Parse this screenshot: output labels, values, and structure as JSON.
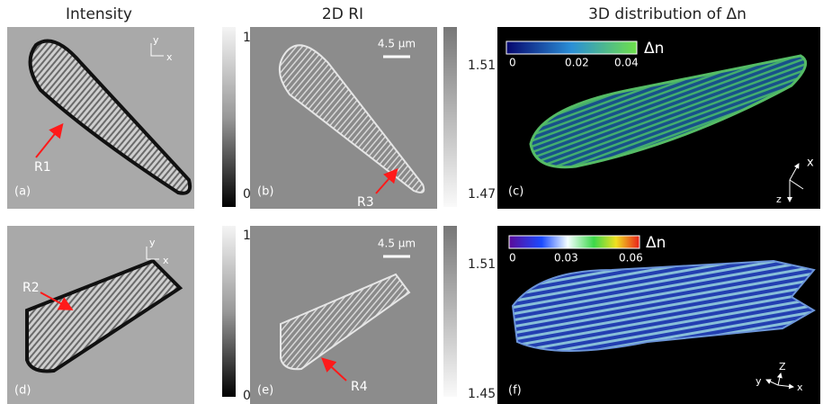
{
  "headers": [
    "Intensity",
    "2D RI",
    "3D distribution of Δn"
  ],
  "panels": [
    {
      "label": "(a)",
      "axis_y": "y",
      "axis_x": "x",
      "marker": "R1"
    },
    {
      "label": "(b)",
      "scale": "4.5 μm",
      "marker": "R3"
    },
    {
      "label": "(c)",
      "cbar_title": "Δn",
      "cbar_ticks": [
        "0",
        "0.02",
        "0.04"
      ],
      "axis_1": "x",
      "axis_2": "z"
    },
    {
      "label": "(d)",
      "axis_y": "y",
      "axis_x": "x",
      "marker": "R2"
    },
    {
      "label": "(e)",
      "scale": "4.5 μm",
      "marker": "R4"
    },
    {
      "label": "(f)",
      "cbar_title": "Δn",
      "cbar_ticks": [
        "0",
        "0.03",
        "0.06"
      ],
      "axis_1": "y",
      "axis_2": "Z",
      "axis_3": "x"
    }
  ],
  "colorbars": [
    {
      "top": "1",
      "bottom": "0"
    },
    {
      "top": "1.51",
      "bottom": "1.47"
    },
    {
      "top": "1",
      "bottom": "0"
    },
    {
      "top": "1.51",
      "bottom": "1.45"
    }
  ]
}
